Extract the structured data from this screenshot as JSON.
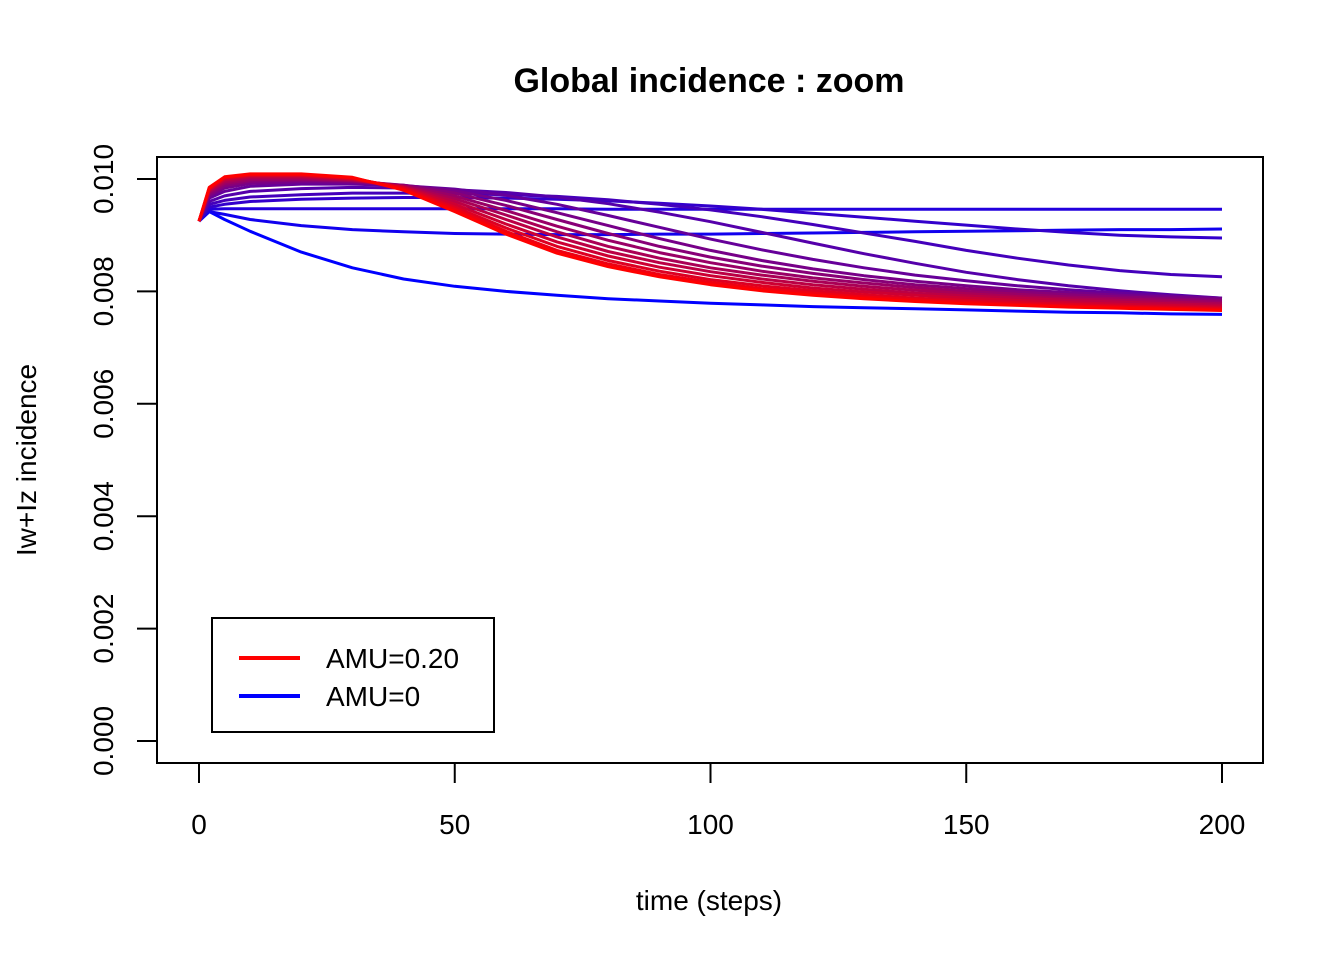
{
  "chart_data": {
    "type": "line",
    "title": "Global incidence : zoom",
    "xlabel": "time (steps)",
    "ylabel": "Iw+Iz incidence",
    "xlim": [
      0,
      200
    ],
    "ylim": [
      0,
      0.01
    ],
    "xticks": [
      0,
      50,
      100,
      150,
      200
    ],
    "yticks": [
      0.0,
      0.002,
      0.004,
      0.006,
      0.008,
      0.01
    ],
    "xtick_labels": [
      "0",
      "50",
      "100",
      "150",
      "200"
    ],
    "ytick_labels": [
      "0.000",
      "0.002",
      "0.004",
      "0.006",
      "0.008",
      "0.010"
    ],
    "grid": false,
    "legend": {
      "position": "bottom-left",
      "entries": [
        {
          "label": "AMU=0.20",
          "color": "#ff0000"
        },
        {
          "label": "AMU=0",
          "color": "#0000ff"
        }
      ]
    },
    "colors": {
      "start": "#ff0000",
      "end": "#0000ff"
    },
    "x": [
      0,
      2,
      5,
      10,
      20,
      30,
      40,
      50,
      60,
      70,
      80,
      90,
      100,
      110,
      120,
      130,
      140,
      150,
      160,
      170,
      180,
      190,
      200
    ],
    "series": [
      {
        "values": [
          0.00925,
          0.00985,
          0.01004,
          0.01009,
          0.01009,
          0.01003,
          0.0098,
          0.00942,
          0.00902,
          0.00868,
          0.00844,
          0.00826,
          0.00812,
          0.00801,
          0.00793,
          0.00787,
          0.00782,
          0.00778,
          0.00775,
          0.00772,
          0.0077,
          0.00768,
          0.00766
        ]
      },
      {
        "values": [
          0.00925,
          0.00984,
          0.01003,
          0.01008,
          0.01008,
          0.01002,
          0.00982,
          0.00946,
          0.00907,
          0.00873,
          0.00849,
          0.0083,
          0.00816,
          0.00805,
          0.00797,
          0.0079,
          0.00785,
          0.00781,
          0.00777,
          0.00774,
          0.00772,
          0.0077,
          0.00768
        ]
      },
      {
        "values": [
          0.00925,
          0.00983,
          0.01002,
          0.01007,
          0.01007,
          0.01001,
          0.00984,
          0.0095,
          0.00913,
          0.0088,
          0.00855,
          0.00836,
          0.00821,
          0.0081,
          0.00801,
          0.00794,
          0.00788,
          0.00784,
          0.0078,
          0.00777,
          0.00774,
          0.00772,
          0.0077
        ]
      },
      {
        "values": [
          0.00925,
          0.00981,
          0.01,
          0.01006,
          0.01006,
          0.01,
          0.00985,
          0.00955,
          0.0092,
          0.00888,
          0.00863,
          0.00843,
          0.00828,
          0.00816,
          0.00806,
          0.00799,
          0.00793,
          0.00788,
          0.00784,
          0.0078,
          0.00777,
          0.00775,
          0.00772
        ]
      },
      {
        "values": [
          0.00925,
          0.0098,
          0.00998,
          0.01004,
          0.01004,
          0.00999,
          0.00986,
          0.0096,
          0.00928,
          0.00897,
          0.00871,
          0.00851,
          0.00835,
          0.00822,
          0.00812,
          0.00804,
          0.00797,
          0.00792,
          0.00788,
          0.00784,
          0.00781,
          0.00778,
          0.00775
        ]
      },
      {
        "values": [
          0.00925,
          0.00978,
          0.00995,
          0.01002,
          0.01002,
          0.00998,
          0.00987,
          0.00965,
          0.00936,
          0.00906,
          0.0088,
          0.00859,
          0.00842,
          0.00829,
          0.00818,
          0.00809,
          0.00802,
          0.00796,
          0.00791,
          0.00787,
          0.00784,
          0.00781,
          0.00778
        ]
      },
      {
        "values": [
          0.00925,
          0.00976,
          0.00992,
          0.00999,
          0.01,
          0.00997,
          0.00988,
          0.0097,
          0.00944,
          0.00916,
          0.00891,
          0.00869,
          0.00851,
          0.00836,
          0.00824,
          0.00815,
          0.00807,
          0.008,
          0.00795,
          0.0079,
          0.00787,
          0.00784,
          0.00781
        ]
      },
      {
        "values": [
          0.00925,
          0.00973,
          0.00988,
          0.00996,
          0.00998,
          0.00996,
          0.00989,
          0.00975,
          0.00953,
          0.00928,
          0.00903,
          0.0088,
          0.00861,
          0.00845,
          0.00832,
          0.00821,
          0.00812,
          0.00805,
          0.00799,
          0.00794,
          0.0079,
          0.00787,
          0.00784
        ]
      },
      {
        "values": [
          0.00925,
          0.0097,
          0.00984,
          0.00992,
          0.00995,
          0.00994,
          0.00989,
          0.00979,
          0.00962,
          0.0094,
          0.00917,
          0.00894,
          0.00873,
          0.00855,
          0.0084,
          0.00828,
          0.00818,
          0.0081,
          0.00803,
          0.00798,
          0.00793,
          0.0079,
          0.00787
        ]
      },
      {
        "values": [
          0.00925,
          0.00966,
          0.00978,
          0.00987,
          0.00991,
          0.00991,
          0.00988,
          0.00982,
          0.00971,
          0.00955,
          0.00935,
          0.00914,
          0.00893,
          0.00874,
          0.00857,
          0.00842,
          0.00829,
          0.00819,
          0.0081,
          0.00803,
          0.00797,
          0.00792,
          0.00788
        ]
      },
      {
        "values": [
          0.00925,
          0.0096,
          0.0097,
          0.00978,
          0.00983,
          0.00985,
          0.00984,
          0.00981,
          0.00976,
          0.00968,
          0.00956,
          0.00941,
          0.00924,
          0.00905,
          0.00886,
          0.00867,
          0.0085,
          0.00834,
          0.00821,
          0.0081,
          0.00801,
          0.00794,
          0.00788
        ]
      },
      {
        "values": [
          0.00925,
          0.00955,
          0.00962,
          0.00968,
          0.00972,
          0.00975,
          0.00975,
          0.00974,
          0.00972,
          0.00969,
          0.00963,
          0.00955,
          0.00945,
          0.00933,
          0.00919,
          0.00904,
          0.00889,
          0.00873,
          0.00859,
          0.00847,
          0.00837,
          0.0083,
          0.00826
        ]
      },
      {
        "values": [
          0.00925,
          0.0095,
          0.00955,
          0.0096,
          0.00964,
          0.00966,
          0.00967,
          0.00967,
          0.00966,
          0.00964,
          0.00961,
          0.00957,
          0.00952,
          0.00946,
          0.00939,
          0.00932,
          0.00925,
          0.00918,
          0.00911,
          0.00905,
          0.009,
          0.00897,
          0.00895
        ]
      },
      {
        "values": [
          0.00925,
          0.00946,
          0.00947,
          0.00947,
          0.00947,
          0.00947,
          0.00947,
          0.00947,
          0.00947,
          0.00947,
          0.00946,
          0.00946,
          0.00946,
          0.00946,
          0.00946,
          0.00946,
          0.00946,
          0.00946,
          0.00946,
          0.00946,
          0.00946,
          0.00946,
          0.00946
        ]
      },
      {
        "values": [
          0.00925,
          0.00942,
          0.00937,
          0.00928,
          0.00917,
          0.0091,
          0.00906,
          0.00903,
          0.00902,
          0.00901,
          0.00901,
          0.00902,
          0.00902,
          0.00903,
          0.00904,
          0.00905,
          0.00906,
          0.00907,
          0.00908,
          0.00909,
          0.0091,
          0.0091,
          0.00911
        ]
      },
      {
        "values": [
          0.00925,
          0.00942,
          0.00928,
          0.00907,
          0.0087,
          0.00842,
          0.00822,
          0.00809,
          0.008,
          0.00793,
          0.00787,
          0.00783,
          0.00779,
          0.00776,
          0.00773,
          0.00771,
          0.00769,
          0.00767,
          0.00765,
          0.00763,
          0.00762,
          0.0076,
          0.00759
        ]
      }
    ]
  }
}
